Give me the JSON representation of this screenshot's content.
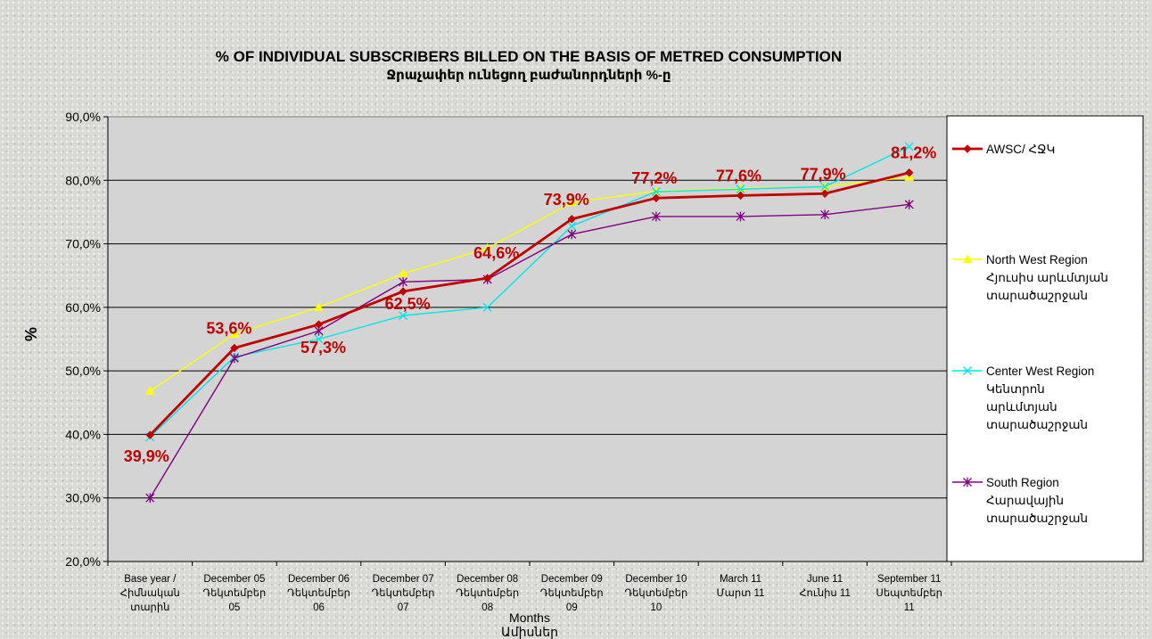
{
  "chart_data": {
    "type": "line",
    "title": "% OF INDIVIDUAL SUBSCRIBERS BILLED ON THE BASIS OF METRED CONSUMPTION",
    "subtitle": "Ջրաչափեր ունեցող բաժանորդների %-ը",
    "xlabel": [
      "Months",
      "Ամիսներ"
    ],
    "ylabel": "%",
    "ylim": [
      20,
      90
    ],
    "yticks": [
      "20,0%",
      "30,0%",
      "40,0%",
      "50,0%",
      "60,0%",
      "70,0%",
      "80,0%",
      "90,0%"
    ],
    "grid": true,
    "legend_position": "right",
    "categories": [
      [
        "Base year /",
        "Հիմնական",
        "տարին"
      ],
      [
        "December 05",
        "Դեկտեմբեր",
        "05"
      ],
      [
        "December 06",
        "Դեկտեմբեր",
        "06"
      ],
      [
        "December 07",
        "Դեկտեմբեր",
        "07"
      ],
      [
        "December 08",
        "Դեկտեմբեր",
        "08"
      ],
      [
        "December 09",
        "Դեկտեմբեր",
        "09"
      ],
      [
        "December 10",
        "Դեկտեմբեր",
        "10"
      ],
      [
        "March 11",
        "Մարտ 11"
      ],
      [
        "June 11",
        "Հունիս 11"
      ],
      [
        "September 11",
        "Սեպտեմբեր",
        "11"
      ]
    ],
    "series": [
      {
        "name": [
          "AWSC/ ՀՋԿ"
        ],
        "color": "#c00000",
        "marker": "diamond",
        "values": [
          39.9,
          53.6,
          57.3,
          62.5,
          64.6,
          73.9,
          77.2,
          77.6,
          77.9,
          81.2
        ],
        "labels": [
          "39,9%",
          "53,6%",
          "57,3%",
          "62,5%",
          "64,6%",
          "73,9%",
          "77,2%",
          "77,6%",
          "77,9%",
          "81,2%"
        ]
      },
      {
        "name": [
          "North West Region",
          "Հյուսիս արևմտյան",
          "տարածաշրջան"
        ],
        "color": "#ffff00",
        "marker": "triangle",
        "values": [
          46.8,
          55.8,
          60.0,
          65.3,
          69.3,
          76.5,
          78.3,
          78.7,
          79.0,
          80.5
        ]
      },
      {
        "name": [
          "Center West Region",
          "Կենտրոն",
          "արևմտյան",
          "տարածաշրջան"
        ],
        "color": "#00e5e5",
        "marker": "x",
        "values": [
          39.6,
          52.2,
          55.0,
          58.7,
          60.0,
          72.8,
          78.2,
          78.6,
          79.0,
          85.3
        ]
      },
      {
        "name": [
          "South Region",
          "Հարավային",
          "տարածաշրջան"
        ],
        "color": "#800080",
        "marker": "star",
        "values": [
          30.0,
          52.0,
          56.3,
          64.0,
          64.4,
          71.5,
          74.3,
          74.3,
          74.6,
          76.2
        ]
      }
    ]
  }
}
